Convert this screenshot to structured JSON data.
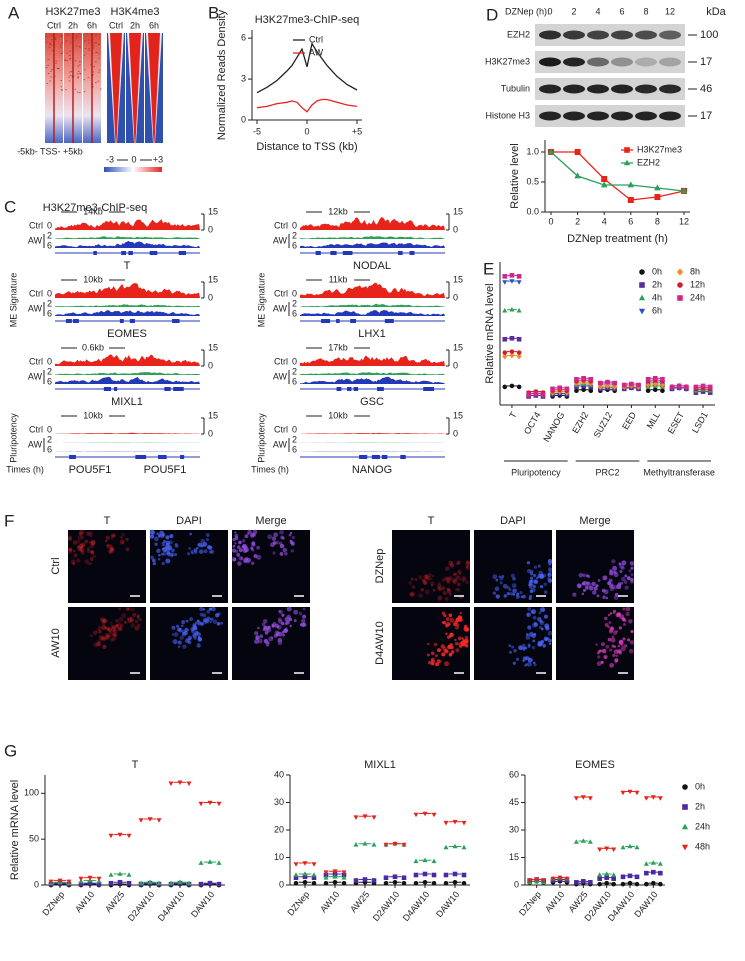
{
  "panel_labels": [
    "A",
    "B",
    "C",
    "D",
    "E",
    "F",
    "G"
  ],
  "panel_a": {
    "columns": [
      {
        "mark": "H3K27me3",
        "times": [
          "Ctrl",
          "2h",
          "6h"
        ]
      },
      {
        "mark": "H3K4me3",
        "times": [
          "Ctrl",
          "2h",
          "6h"
        ]
      }
    ],
    "tss_label": "-5kb- TSS- +5kb",
    "scale": [
      "-3",
      "0",
      "+3"
    ]
  },
  "panel_c": {
    "title": "H3K27me3-ChIP-seq",
    "row_labels": {
      "ctrl": "Ctrl",
      "aw": "AW",
      "t2": "2",
      "t6": "6",
      "ymin": "0",
      "ymax": "15"
    },
    "groups": [
      "ME Signature",
      "Pluripotency"
    ],
    "times_label": "Times (h)",
    "left": [
      {
        "span": "14kb",
        "genes": [
          "T"
        ]
      },
      {
        "span": "10kb",
        "genes": [
          "EOMES"
        ]
      },
      {
        "span": "0.6kb",
        "genes": [
          "MIXL1"
        ]
      },
      {
        "span": "10kb",
        "genes": [
          "POU5F1",
          "POU5F1"
        ]
      }
    ],
    "right": [
      {
        "span": "12kb",
        "genes": [
          "NODAL"
        ]
      },
      {
        "span": "11kb",
        "genes": [
          "LHX1"
        ]
      },
      {
        "span": "17kb",
        "genes": [
          "GSC"
        ]
      },
      {
        "span": "10kb",
        "genes": [
          "NANOG"
        ]
      }
    ]
  },
  "panel_d_blot": {
    "treatment": "DZNep (h):",
    "lanes": [
      "0",
      "2",
      "4",
      "6",
      "8",
      "12"
    ],
    "unit": "kDa",
    "rows": [
      {
        "name": "EZH2",
        "kda": "100"
      },
      {
        "name": "H3K27me3",
        "kda": "17"
      },
      {
        "name": "Tubulin",
        "kda": "46"
      },
      {
        "name": "Histone H3",
        "kda": "17"
      }
    ]
  },
  "panel_f": {
    "columns": [
      "T",
      "DAPI",
      "Merge"
    ],
    "left_rows": [
      "Ctrl",
      "AW10"
    ],
    "right_rows": [
      "DZNep",
      "D4AW10"
    ]
  },
  "chart_data": [
    {
      "type": "line",
      "title": "H3K27me3-ChIP-seq",
      "x_label": "Distance to TSS (kb)",
      "y_label": "Normalized Reads Density",
      "x": [
        -5,
        -4,
        -3,
        -2,
        -1.5,
        -1,
        -0.5,
        0,
        0.5,
        1,
        1.5,
        2,
        3,
        4,
        5
      ],
      "series": [
        {
          "name": "Ctrl",
          "color": "#222222",
          "values": [
            2.0,
            2.4,
            2.9,
            3.6,
            4.0,
            4.6,
            5.2,
            3.9,
            5.6,
            5.0,
            4.5,
            4.0,
            3.2,
            2.6,
            2.2
          ]
        },
        {
          "name": "AW",
          "color": "#e8231c",
          "values": [
            0.9,
            1.0,
            1.2,
            1.3,
            1.4,
            1.3,
            0.9,
            0.6,
            1.1,
            1.4,
            1.5,
            1.5,
            1.3,
            1.1,
            1.0
          ]
        }
      ],
      "xlim": [
        -5.5,
        5.5
      ],
      "ylim": [
        0,
        6.6
      ],
      "xticks": [
        -5,
        0,
        {
          "value": 5,
          "label": "+5"
        }
      ],
      "yticks": [
        0,
        3,
        6
      ],
      "legend": "upper right"
    },
    {
      "type": "line",
      "x_label": "DZNep treatment (h)",
      "y_label": "Relative level",
      "categories": [
        "0",
        "2",
        "4",
        "6",
        "8",
        "12"
      ],
      "series": [
        {
          "name": "H3K27me3",
          "color": "#e8231c",
          "marker": "square",
          "values": [
            1.0,
            1.0,
            0.55,
            0.2,
            0.25,
            0.35
          ]
        },
        {
          "name": "EZH2",
          "color": "#2ca05a",
          "marker": "triangle",
          "values": [
            1.0,
            0.6,
            0.45,
            0.45,
            0.4,
            0.35
          ]
        }
      ],
      "ylim": [
        0,
        1.2
      ],
      "yticks": [
        {
          "value": 0,
          "label": "0.0"
        },
        {
          "value": 0.5,
          "label": "0.5"
        },
        {
          "value": 1,
          "label": "1.0"
        }
      ],
      "legend": "upper right"
    },
    {
      "type": "scatter",
      "y_label": "Relative mRNA level",
      "categories": [
        "T",
        "OCT4",
        "NANOG",
        "EZH2",
        "SUZ12",
        "EED",
        "MLL",
        "ESET",
        "LSD1"
      ],
      "group_labels": [
        "Pluripotency",
        "PRC2",
        "Methyltransferase"
      ],
      "series": [
        {
          "name": "0h",
          "color": "#111111",
          "marker": "circle",
          "values": [
            1.0,
            0.6,
            0.5,
            0.8,
            0.8,
            0.9,
            0.8,
            0.9,
            0.8
          ]
        },
        {
          "name": "2h",
          "color": "#5b2c9e",
          "marker": "square",
          "values": [
            3.5,
            0.5,
            0.6,
            1.0,
            0.9,
            0.9,
            1.1,
            0.9,
            0.7
          ]
        },
        {
          "name": "4h",
          "color": "#2ca05a",
          "marker": "triangle",
          "values": [
            5.0,
            0.6,
            0.7,
            1.1,
            1.0,
            1.0,
            1.0,
            1.0,
            0.8
          ]
        },
        {
          "name": "6h",
          "color": "#2850c8",
          "marker": "tri-down",
          "values": [
            6.5,
            0.7,
            0.6,
            1.2,
            1.1,
            1.0,
            1.2,
            0.9,
            0.9
          ]
        },
        {
          "name": "8h",
          "color": "#f08c1e",
          "marker": "diamond",
          "values": [
            2.6,
            0.6,
            0.7,
            1.2,
            1.0,
            1.0,
            1.1,
            1.0,
            0.9
          ]
        },
        {
          "name": "12h",
          "color": "#d8192b",
          "marker": "circle",
          "values": [
            2.8,
            0.7,
            0.8,
            1.3,
            1.2,
            1.1,
            1.3,
            1.0,
            0.9
          ]
        },
        {
          "name": "24h",
          "color": "#d0268c",
          "marker": "square",
          "values": [
            6.8,
            0.6,
            0.9,
            1.4,
            1.2,
            1.1,
            1.4,
            1.0,
            1.0
          ]
        }
      ],
      "ylim": [
        0,
        7.5
      ],
      "legend": "upper right"
    },
    {
      "type": "scatter",
      "title": "T",
      "y_label": "Relative mRNA level",
      "categories": [
        "DZNep",
        "AW10",
        "AW25",
        "D2AW10",
        "D4AW10",
        "DAW10"
      ],
      "series": [
        {
          "name": "0h",
          "color": "#111111",
          "marker": "circle",
          "values": [
            1,
            1,
            1,
            1,
            1,
            1
          ]
        },
        {
          "name": "2h",
          "color": "#4b2aa0",
          "marker": "square",
          "values": [
            2,
            2,
            3,
            2,
            2,
            2
          ]
        },
        {
          "name": "24h",
          "color": "#2ca05a",
          "marker": "triangle",
          "values": [
            3,
            5,
            12,
            3,
            3,
            25
          ]
        },
        {
          "name": "48h",
          "color": "#e8231c",
          "marker": "tri-down",
          "values": [
            5,
            8,
            55,
            72,
            112,
            90
          ]
        }
      ],
      "ylim": [
        0,
        120
      ],
      "yticks": [
        0,
        50,
        100
      ]
    },
    {
      "type": "scatter",
      "title": "MIXL1",
      "categories": [
        "DZNep",
        "AW10",
        "AW25",
        "D2AW10",
        "D4AW10",
        "DAW10"
      ],
      "series": [
        {
          "name": "0h",
          "color": "#111111",
          "marker": "circle",
          "values": [
            1,
            1,
            1,
            1,
            1,
            1
          ]
        },
        {
          "name": "2h",
          "color": "#4b2aa0",
          "marker": "square",
          "values": [
            3,
            4,
            2,
            3,
            4,
            4
          ]
        },
        {
          "name": "24h",
          "color": "#2ca05a",
          "marker": "triangle",
          "values": [
            4,
            3,
            15,
            15,
            9,
            14
          ]
        },
        {
          "name": "48h",
          "color": "#e8231c",
          "marker": "tri-down",
          "values": [
            8,
            5,
            25,
            15,
            26,
            23
          ]
        }
      ],
      "ylim": [
        0,
        40
      ],
      "yticks": [
        0,
        10,
        20,
        30,
        40
      ]
    },
    {
      "type": "scatter",
      "title": "EOMES",
      "categories": [
        "DZNep",
        "AW10",
        "AW25",
        "D2AW10",
        "D4AW10",
        "DAW10"
      ],
      "series": [
        {
          "name": "0h",
          "color": "#111111",
          "marker": "circle",
          "values": [
            2,
            2,
            1,
            1,
            1,
            1
          ]
        },
        {
          "name": "2h",
          "color": "#4b2aa0",
          "marker": "square",
          "values": [
            3,
            3,
            2,
            4,
            5,
            7
          ]
        },
        {
          "name": "24h",
          "color": "#2ca05a",
          "marker": "triangle",
          "values": [
            2,
            4,
            24,
            6,
            21,
            12
          ]
        },
        {
          "name": "48h",
          "color": "#e8231c",
          "marker": "tri-down",
          "values": [
            3,
            4,
            48,
            20,
            51,
            48
          ]
        }
      ],
      "ylim": [
        0,
        60
      ],
      "yticks": [
        0,
        15,
        30,
        45,
        60
      ],
      "legend": "right"
    }
  ]
}
